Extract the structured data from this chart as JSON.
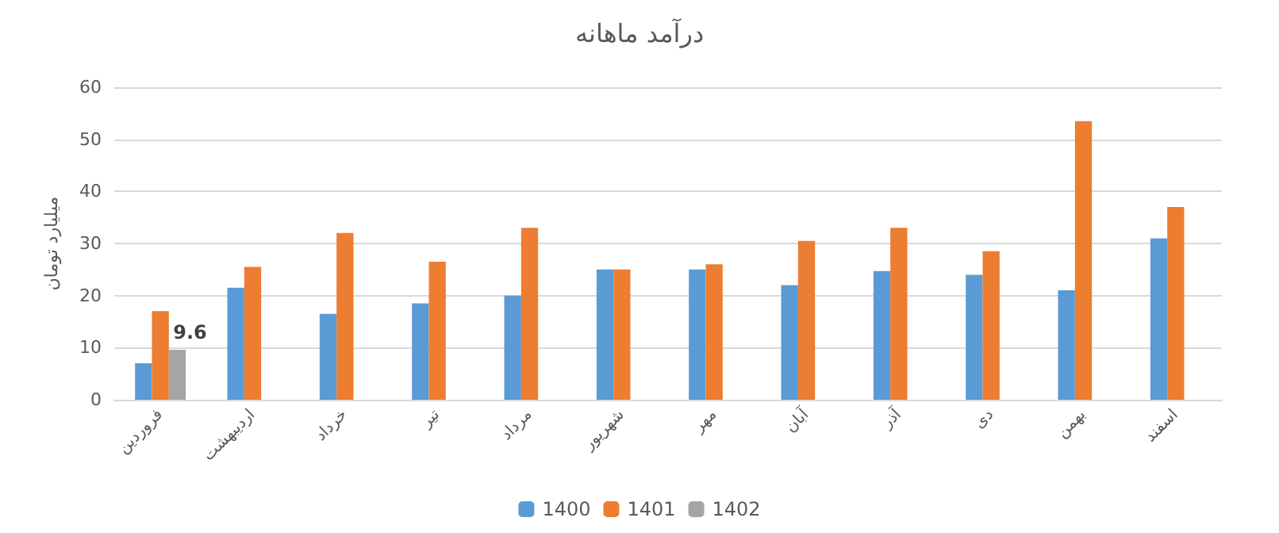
{
  "chart_data": {
    "type": "bar",
    "title": "درآمد ماهانه",
    "ylabel": "میلیارد تومان",
    "categories": [
      "فروردین",
      "اردیبهشت",
      "خرداد",
      "تیر",
      "مرداد",
      "شهریور",
      "مهر",
      "آبان",
      "آذر",
      "دی",
      "بهمن",
      "اسفند"
    ],
    "series": [
      {
        "name": "1400",
        "color": "#5b9bd5",
        "values": [
          7,
          21.5,
          16.5,
          18.5,
          20,
          25,
          25,
          22,
          24.7,
          24,
          21,
          31
        ]
      },
      {
        "name": "1401",
        "color": "#ed7d31",
        "values": [
          17,
          25.5,
          32,
          26.5,
          33,
          25,
          26,
          30.5,
          33,
          28.5,
          53.5,
          37
        ]
      },
      {
        "name": "1402",
        "color": "#a5a5a5",
        "values": [
          9.6,
          null,
          null,
          null,
          null,
          null,
          null,
          null,
          null,
          null,
          null,
          null
        ],
        "value_labels": [
          "9.6",
          null,
          null,
          null,
          null,
          null,
          null,
          null,
          null,
          null,
          null,
          null
        ]
      }
    ],
    "ylim": [
      0,
      60
    ],
    "yticks": [
      0,
      10,
      20,
      30,
      40,
      50,
      60
    ],
    "grid": "y",
    "legend": "bottom"
  }
}
